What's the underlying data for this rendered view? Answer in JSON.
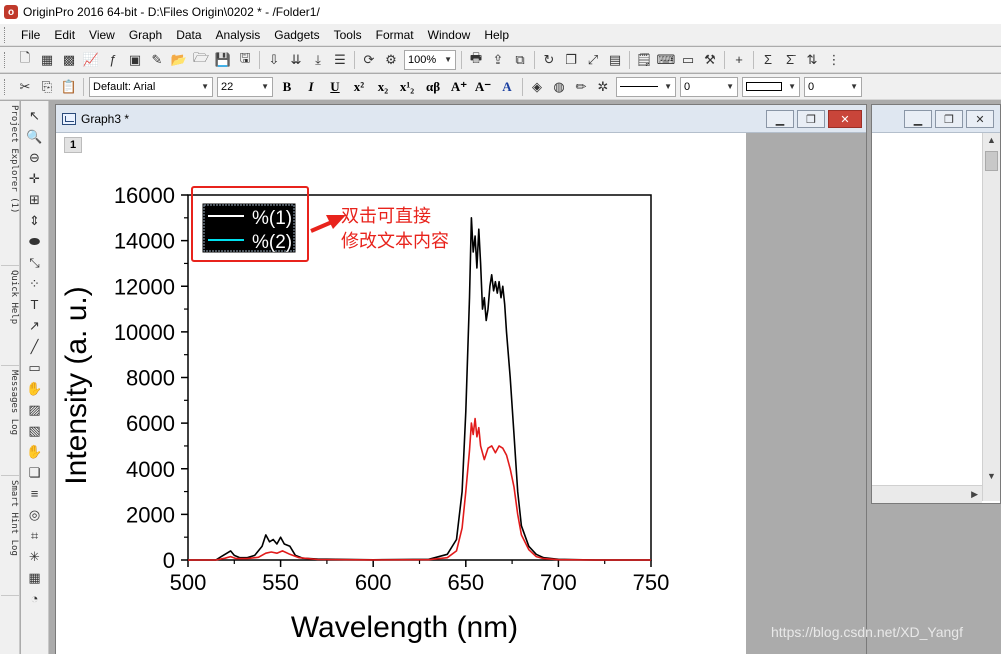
{
  "app": {
    "title": "OriginPro 2016 64-bit - D:\\Files Origin\\0202 * - /Folder1/",
    "icon_letter": "o"
  },
  "menu": [
    "File",
    "Edit",
    "View",
    "Graph",
    "Data",
    "Analysis",
    "Gadgets",
    "Tools",
    "Format",
    "Window",
    "Help"
  ],
  "toolbar1": {
    "zoom_value": "100%"
  },
  "toolbar2": {
    "font_name": "Default: Arial",
    "font_size": "22",
    "bold": "B",
    "italic": "I",
    "underline": "U",
    "greek": "αβ",
    "line_width": "0",
    "pattern_width": "0"
  },
  "side_tabs": [
    "Project Explorer (1)",
    "Quick Help",
    "Messages Log",
    "Smart Hint Log"
  ],
  "graph_window": {
    "title": "Graph3 *",
    "layer_index": "1"
  },
  "legend": {
    "entry1": "%(1)",
    "entry2": "%(2)"
  },
  "annotation": {
    "line1": "双击可直接",
    "line2": "修改文本内容"
  },
  "watermark": "https://blog.csdn.net/XD_Yangf",
  "chart_data": {
    "type": "line",
    "xlabel": "Wavelength (nm)",
    "ylabel": "Intensity (a. u.)",
    "xlim": [
      500,
      750
    ],
    "ylim": [
      0,
      16000
    ],
    "xticks": [
      500,
      550,
      600,
      650,
      700,
      750
    ],
    "yticks": [
      0,
      2000,
      4000,
      6000,
      8000,
      10000,
      12000,
      14000,
      16000
    ],
    "grid": false,
    "legend_position": "top-left",
    "series": [
      {
        "name": "%(1)",
        "color": "#000000",
        "x": [
          500,
          515,
          518,
          521,
          523,
          525,
          528,
          532,
          536,
          540,
          542,
          544,
          546,
          548,
          550,
          552,
          555,
          558,
          562,
          570,
          600,
          630,
          640,
          645,
          648,
          650,
          652,
          653,
          654,
          655,
          656,
          657,
          658,
          659,
          660,
          661,
          662,
          663,
          664,
          665,
          666,
          667,
          668,
          669,
          670,
          671,
          672,
          674,
          676,
          678,
          680,
          684,
          688,
          692,
          700,
          720,
          750
        ],
        "y": [
          0,
          0,
          150,
          300,
          400,
          200,
          100,
          100,
          200,
          600,
          1100,
          800,
          900,
          700,
          1000,
          700,
          600,
          200,
          80,
          40,
          10,
          30,
          250,
          900,
          3000,
          6500,
          11500,
          15000,
          13500,
          14200,
          12800,
          14500,
          13000,
          11000,
          11500,
          10500,
          11000,
          12000,
          12500,
          11800,
          12200,
          11700,
          12200,
          11500,
          12000,
          11200,
          10000,
          8000,
          5500,
          3000,
          1500,
          600,
          250,
          100,
          30,
          0,
          0
        ]
      },
      {
        "name": "%(2)",
        "color": "#e11b1b",
        "x": [
          500,
          515,
          520,
          523,
          526,
          532,
          538,
          542,
          545,
          548,
          551,
          555,
          560,
          570,
          600,
          630,
          640,
          645,
          648,
          650,
          652,
          653,
          654,
          655,
          656,
          657,
          658,
          660,
          662,
          664,
          666,
          668,
          670,
          672,
          674,
          676,
          678,
          680,
          684,
          688,
          692,
          700,
          720,
          750
        ],
        "y": [
          0,
          0,
          80,
          150,
          60,
          60,
          120,
          300,
          350,
          300,
          400,
          250,
          100,
          20,
          5,
          15,
          100,
          400,
          1400,
          3000,
          4800,
          6000,
          5500,
          6200,
          5400,
          5800,
          5000,
          4400,
          4900,
          5000,
          4700,
          5000,
          4900,
          4600,
          4000,
          3200,
          2000,
          1100,
          450,
          150,
          60,
          15,
          0,
          0
        ]
      }
    ]
  }
}
